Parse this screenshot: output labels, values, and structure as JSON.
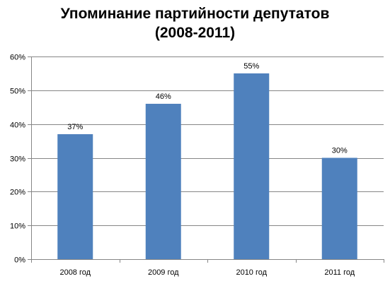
{
  "chart_data": {
    "type": "bar",
    "title_line1": "Упоминание партийности депутатов",
    "title_line2": "(2008-2011)",
    "categories": [
      "2008 год",
      "2009 год",
      "2010 год",
      "2011 год"
    ],
    "values": [
      37,
      46,
      55,
      30
    ],
    "data_labels": [
      "37%",
      "46%",
      "55%",
      "30%"
    ],
    "y_ticks": [
      "0%",
      "10%",
      "20%",
      "30%",
      "40%",
      "50%",
      "60%"
    ],
    "ylim": [
      0,
      60
    ],
    "y_unit": "%",
    "grid": true,
    "legend": "none",
    "bar_color": "#4f81bd",
    "grid_color": "#868686"
  }
}
